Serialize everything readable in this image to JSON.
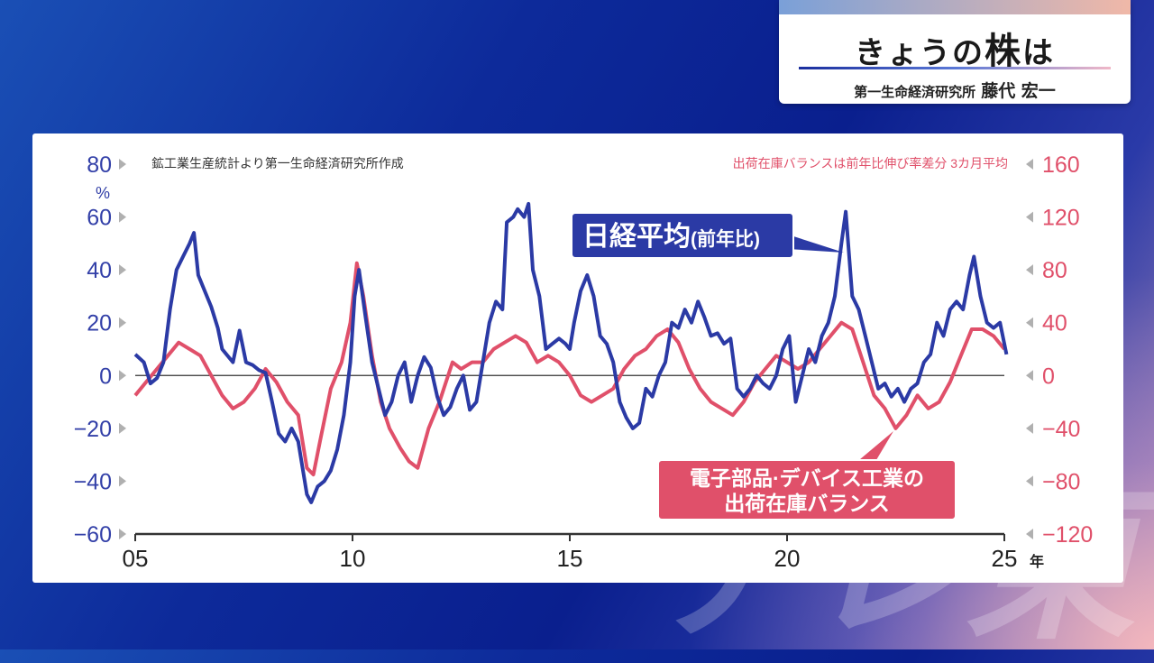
{
  "header": {
    "title_pre": "きょうの",
    "title_em": "株",
    "title_post": "は",
    "sub_org": "第一生命経済研究所",
    "sub_name": "藤代 宏一"
  },
  "watermark": "テレ東",
  "colors": {
    "nikkei": "#2b3aa5",
    "balance": "#e0506a",
    "axis_left": "#3340a8",
    "axis_right": "#e0506a"
  },
  "chart_data": {
    "type": "line",
    "source_note": "鉱工業生産統計より第一生命経済研究所作成",
    "right_note": "出荷在庫バランスは前年比伸び率差分 3カ月平均",
    "left_unit": "%",
    "x_unit": "年",
    "xlim": [
      2005,
      2025
    ],
    "x_ticks": [
      "05",
      "10",
      "15",
      "20",
      "25"
    ],
    "ylim_left": [
      -60,
      80
    ],
    "ylim_right": [
      -120,
      160
    ],
    "left_ticks": [
      "80",
      "60",
      "40",
      "20",
      "0",
      "−20",
      "−40",
      "−60"
    ],
    "right_ticks": [
      "160",
      "120",
      "80",
      "40",
      "0",
      "−40",
      "−80",
      "−120"
    ],
    "series": [
      {
        "name": "日経平均",
        "name_suffix": "(前年比)",
        "axis": "left",
        "points": [
          [
            2005.0,
            8
          ],
          [
            2005.2,
            5
          ],
          [
            2005.35,
            -3
          ],
          [
            2005.5,
            -1
          ],
          [
            2005.65,
            5
          ],
          [
            2005.8,
            25
          ],
          [
            2005.95,
            40
          ],
          [
            2006.1,
            45
          ],
          [
            2006.25,
            50
          ],
          [
            2006.35,
            54
          ],
          [
            2006.45,
            38
          ],
          [
            2006.6,
            32
          ],
          [
            2006.75,
            26
          ],
          [
            2006.9,
            18
          ],
          [
            2007.0,
            10
          ],
          [
            2007.1,
            8
          ],
          [
            2007.25,
            5
          ],
          [
            2007.4,
            17
          ],
          [
            2007.55,
            5
          ],
          [
            2007.7,
            4
          ],
          [
            2007.85,
            2
          ],
          [
            2008.0,
            1
          ],
          [
            2008.15,
            -10
          ],
          [
            2008.3,
            -22
          ],
          [
            2008.45,
            -25
          ],
          [
            2008.6,
            -20
          ],
          [
            2008.75,
            -25
          ],
          [
            2008.85,
            -35
          ],
          [
            2008.95,
            -45
          ],
          [
            2009.05,
            -48
          ],
          [
            2009.2,
            -42
          ],
          [
            2009.35,
            -40
          ],
          [
            2009.5,
            -36
          ],
          [
            2009.65,
            -28
          ],
          [
            2009.8,
            -15
          ],
          [
            2009.95,
            5
          ],
          [
            2010.05,
            30
          ],
          [
            2010.15,
            40
          ],
          [
            2010.3,
            22
          ],
          [
            2010.45,
            5
          ],
          [
            2010.6,
            -5
          ],
          [
            2010.75,
            -15
          ],
          [
            2010.9,
            -10
          ],
          [
            2011.05,
            0
          ],
          [
            2011.2,
            5
          ],
          [
            2011.35,
            -10
          ],
          [
            2011.5,
            0
          ],
          [
            2011.65,
            7
          ],
          [
            2011.8,
            3
          ],
          [
            2011.95,
            -8
          ],
          [
            2012.1,
            -15
          ],
          [
            2012.25,
            -12
          ],
          [
            2012.4,
            -5
          ],
          [
            2012.55,
            0
          ],
          [
            2012.7,
            -13
          ],
          [
            2012.85,
            -10
          ],
          [
            2013.0,
            5
          ],
          [
            2013.15,
            20
          ],
          [
            2013.3,
            28
          ],
          [
            2013.45,
            25
          ],
          [
            2013.55,
            58
          ],
          [
            2013.7,
            60
          ],
          [
            2013.8,
            63
          ],
          [
            2013.95,
            60
          ],
          [
            2014.05,
            65
          ],
          [
            2014.15,
            40
          ],
          [
            2014.3,
            30
          ],
          [
            2014.45,
            10
          ],
          [
            2014.6,
            12
          ],
          [
            2014.75,
            14
          ],
          [
            2014.9,
            12
          ],
          [
            2015.0,
            10
          ],
          [
            2015.1,
            20
          ],
          [
            2015.25,
            32
          ],
          [
            2015.4,
            38
          ],
          [
            2015.55,
            30
          ],
          [
            2015.7,
            15
          ],
          [
            2015.85,
            12
          ],
          [
            2016.0,
            5
          ],
          [
            2016.15,
            -10
          ],
          [
            2016.3,
            -16
          ],
          [
            2016.45,
            -20
          ],
          [
            2016.6,
            -18
          ],
          [
            2016.75,
            -5
          ],
          [
            2016.9,
            -8
          ],
          [
            2017.05,
            0
          ],
          [
            2017.2,
            5
          ],
          [
            2017.35,
            20
          ],
          [
            2017.5,
            18
          ],
          [
            2017.65,
            25
          ],
          [
            2017.8,
            20
          ],
          [
            2017.95,
            28
          ],
          [
            2018.1,
            22
          ],
          [
            2018.25,
            15
          ],
          [
            2018.4,
            16
          ],
          [
            2018.55,
            12
          ],
          [
            2018.7,
            14
          ],
          [
            2018.85,
            -5
          ],
          [
            2019.0,
            -8
          ],
          [
            2019.15,
            -5
          ],
          [
            2019.3,
            0
          ],
          [
            2019.45,
            -3
          ],
          [
            2019.6,
            -5
          ],
          [
            2019.75,
            0
          ],
          [
            2019.9,
            10
          ],
          [
            2020.05,
            15
          ],
          [
            2020.2,
            -10
          ],
          [
            2020.35,
            0
          ],
          [
            2020.5,
            10
          ],
          [
            2020.65,
            5
          ],
          [
            2020.8,
            15
          ],
          [
            2020.95,
            20
          ],
          [
            2021.1,
            30
          ],
          [
            2021.25,
            50
          ],
          [
            2021.35,
            62
          ],
          [
            2021.5,
            30
          ],
          [
            2021.65,
            25
          ],
          [
            2021.8,
            15
          ],
          [
            2021.95,
            5
          ],
          [
            2022.1,
            -5
          ],
          [
            2022.25,
            -3
          ],
          [
            2022.4,
            -8
          ],
          [
            2022.55,
            -5
          ],
          [
            2022.7,
            -10
          ],
          [
            2022.85,
            -5
          ],
          [
            2023.0,
            -3
          ],
          [
            2023.15,
            5
          ],
          [
            2023.3,
            8
          ],
          [
            2023.45,
            20
          ],
          [
            2023.6,
            15
          ],
          [
            2023.75,
            25
          ],
          [
            2023.9,
            28
          ],
          [
            2024.05,
            25
          ],
          [
            2024.2,
            38
          ],
          [
            2024.3,
            45
          ],
          [
            2024.45,
            30
          ],
          [
            2024.6,
            20
          ],
          [
            2024.75,
            18
          ],
          [
            2024.9,
            20
          ],
          [
            2025.05,
            8
          ]
        ]
      },
      {
        "name": "電子部品・デバイス工業の出荷在庫バランス",
        "axis": "right",
        "points": [
          [
            2005.0,
            -15
          ],
          [
            2005.25,
            -5
          ],
          [
            2005.5,
            5
          ],
          [
            2005.75,
            15
          ],
          [
            2006.0,
            25
          ],
          [
            2006.25,
            20
          ],
          [
            2006.5,
            15
          ],
          [
            2006.75,
            0
          ],
          [
            2007.0,
            -15
          ],
          [
            2007.25,
            -25
          ],
          [
            2007.5,
            -20
          ],
          [
            2007.75,
            -10
          ],
          [
            2008.0,
            5
          ],
          [
            2008.25,
            -5
          ],
          [
            2008.5,
            -20
          ],
          [
            2008.75,
            -30
          ],
          [
            2008.95,
            -70
          ],
          [
            2009.1,
            -75
          ],
          [
            2009.25,
            -50
          ],
          [
            2009.5,
            -10
          ],
          [
            2009.75,
            10
          ],
          [
            2009.95,
            40
          ],
          [
            2010.1,
            85
          ],
          [
            2010.25,
            60
          ],
          [
            2010.45,
            15
          ],
          [
            2010.65,
            -20
          ],
          [
            2010.85,
            -40
          ],
          [
            2011.1,
            -55
          ],
          [
            2011.3,
            -65
          ],
          [
            2011.5,
            -70
          ],
          [
            2011.75,
            -40
          ],
          [
            2012.0,
            -20
          ],
          [
            2012.3,
            10
          ],
          [
            2012.5,
            5
          ],
          [
            2012.75,
            10
          ],
          [
            2013.0,
            10
          ],
          [
            2013.25,
            20
          ],
          [
            2013.5,
            25
          ],
          [
            2013.75,
            30
          ],
          [
            2014.0,
            25
          ],
          [
            2014.25,
            10
          ],
          [
            2014.5,
            15
          ],
          [
            2014.75,
            10
          ],
          [
            2015.0,
            0
          ],
          [
            2015.25,
            -15
          ],
          [
            2015.5,
            -20
          ],
          [
            2015.75,
            -15
          ],
          [
            2016.0,
            -10
          ],
          [
            2016.25,
            5
          ],
          [
            2016.5,
            15
          ],
          [
            2016.75,
            20
          ],
          [
            2017.0,
            30
          ],
          [
            2017.25,
            35
          ],
          [
            2017.5,
            25
          ],
          [
            2017.75,
            5
          ],
          [
            2018.0,
            -10
          ],
          [
            2018.25,
            -20
          ],
          [
            2018.5,
            -25
          ],
          [
            2018.75,
            -30
          ],
          [
            2019.0,
            -20
          ],
          [
            2019.25,
            -5
          ],
          [
            2019.5,
            5
          ],
          [
            2019.75,
            15
          ],
          [
            2020.0,
            10
          ],
          [
            2020.25,
            5
          ],
          [
            2020.5,
            10
          ],
          [
            2020.75,
            20
          ],
          [
            2021.0,
            30
          ],
          [
            2021.25,
            40
          ],
          [
            2021.5,
            35
          ],
          [
            2021.75,
            10
          ],
          [
            2022.0,
            -15
          ],
          [
            2022.25,
            -25
          ],
          [
            2022.5,
            -40
          ],
          [
            2022.75,
            -30
          ],
          [
            2023.0,
            -15
          ],
          [
            2023.25,
            -25
          ],
          [
            2023.5,
            -20
          ],
          [
            2023.75,
            -5
          ],
          [
            2024.0,
            15
          ],
          [
            2024.25,
            35
          ],
          [
            2024.5,
            35
          ],
          [
            2024.75,
            30
          ],
          [
            2025.0,
            20
          ]
        ]
      }
    ],
    "annotations": [
      {
        "id": "nikkei",
        "main": "日経平均",
        "suffix": "(前年比)"
      },
      {
        "id": "balance",
        "line1": "電子部品·デバイス工業の",
        "line2": "出荷在庫バランス"
      }
    ]
  }
}
